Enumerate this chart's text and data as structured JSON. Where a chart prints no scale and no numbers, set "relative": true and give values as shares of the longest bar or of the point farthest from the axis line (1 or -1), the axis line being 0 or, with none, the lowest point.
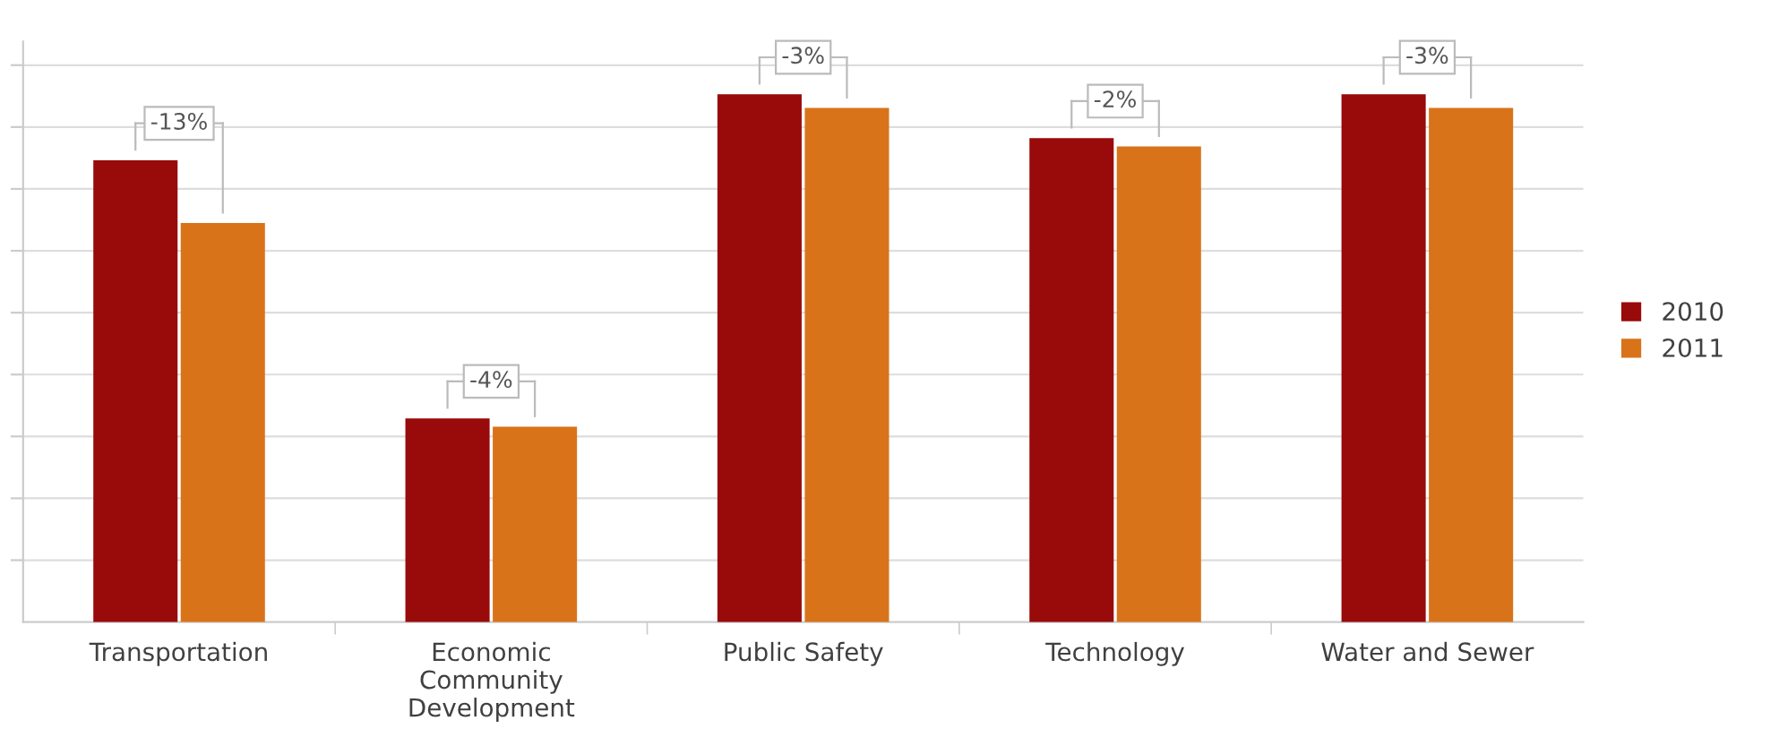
{
  "chart_data": {
    "type": "bar",
    "relative": true,
    "categories": [
      "Transportation",
      "Economic\nCommunity\nDevelopment",
      "Public Safety",
      "Technology",
      "Water and Sewer"
    ],
    "series": [
      {
        "name": "2010",
        "color": "#990a0a",
        "values": [
          0.875,
          0.386,
          1,
          0.917,
          1
        ]
      },
      {
        "name": "2011",
        "color": "#d9731a",
        "values": [
          0.756,
          0.37,
          0.974,
          0.901,
          0.974
        ]
      }
    ],
    "annotations": [
      "-13%",
      "-4%",
      "-3%",
      "-2%",
      "-3%"
    ],
    "grid": "y",
    "legend": "right"
  }
}
